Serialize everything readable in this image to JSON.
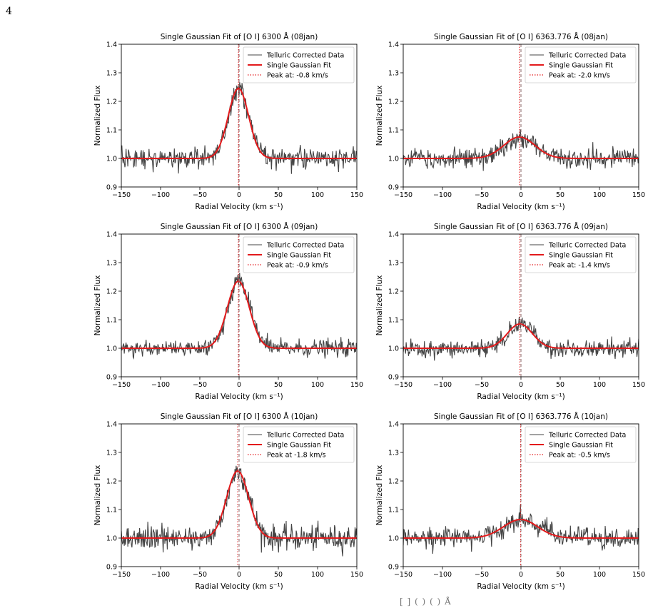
{
  "page": {
    "page_number": "4"
  },
  "axis_common": {
    "xlabel": "Radial Velocity (km s⁻¹)",
    "ylabel": "Normalized Flux",
    "x_ticks": [
      "−150",
      "−100",
      "−50",
      "0",
      "50",
      "100",
      "150"
    ],
    "y_ticks": [
      "0.9",
      "1.0",
      "1.1",
      "1.2",
      "1.3",
      "1.4"
    ],
    "xlim": [
      -150,
      150
    ],
    "ylim": [
      0.9,
      1.4
    ],
    "legend_position": "top-right"
  },
  "colors": {
    "data_line": "#444444",
    "fit_line": "#e31a1c",
    "peak_line": "#e31a1c",
    "zero_line": "#8b6a6a"
  },
  "chart_data": [
    {
      "type": "line",
      "title": "Single Gaussian Fit of [O I] 6300 Å (08jan)",
      "xlabel": "Radial Velocity (km s⁻¹)",
      "ylabel": "Normalized Flux",
      "xlim": [
        -150,
        150
      ],
      "ylim": [
        0.9,
        1.4
      ],
      "series": [
        {
          "name": "Telluric Corrected Data",
          "kind": "noisy-line",
          "baseline": 1.0,
          "amplitude": 0.24,
          "center": 0,
          "sigma": 13,
          "noise": 0.018
        },
        {
          "name": "Single Gaussian Fit",
          "kind": "gaussian",
          "baseline": 1.0,
          "amplitude": 0.245,
          "center": -0.8,
          "sigma": 13
        }
      ],
      "peak": {
        "label": "Peak at: -0.8 km/s",
        "x": -0.8
      }
    },
    {
      "type": "line",
      "title": "Single Gaussian Fit of [O I] 6363.776 Å (08jan)",
      "xlabel": "Radial Velocity (km s⁻¹)",
      "ylabel": "Normalized Flux",
      "xlim": [
        -150,
        150
      ],
      "ylim": [
        0.9,
        1.4
      ],
      "series": [
        {
          "name": "Telluric Corrected Data",
          "kind": "noisy-line",
          "baseline": 1.0,
          "amplitude": 0.075,
          "center": 0,
          "sigma": 20,
          "noise": 0.018
        },
        {
          "name": "Single Gaussian Fit",
          "kind": "gaussian",
          "baseline": 1.0,
          "amplitude": 0.075,
          "center": -2.0,
          "sigma": 20
        }
      ],
      "peak": {
        "label": "Peak at: -2.0 km/s",
        "x": -2.0
      }
    },
    {
      "type": "line",
      "title": "Single Gaussian Fit of [O I] 6300 Å (09jan)",
      "xlabel": "Radial Velocity (km s⁻¹)",
      "ylabel": "Normalized Flux",
      "xlim": [
        -150,
        150
      ],
      "ylim": [
        0.9,
        1.4
      ],
      "series": [
        {
          "name": "Telluric Corrected Data",
          "kind": "noisy-line",
          "baseline": 1.0,
          "amplitude": 0.235,
          "center": 0,
          "sigma": 14,
          "noise": 0.015
        },
        {
          "name": "Single Gaussian Fit",
          "kind": "gaussian",
          "baseline": 1.0,
          "amplitude": 0.235,
          "center": -0.9,
          "sigma": 14
        }
      ],
      "peak": {
        "label": "Peak at: -0.9 km/s",
        "x": -0.9
      }
    },
    {
      "type": "line",
      "title": "Single Gaussian Fit of [O I] 6363.776 Å (09jan)",
      "xlabel": "Radial Velocity (km s⁻¹)",
      "ylabel": "Normalized Flux",
      "xlim": [
        -150,
        150
      ],
      "ylim": [
        0.9,
        1.4
      ],
      "series": [
        {
          "name": "Telluric Corrected Data",
          "kind": "noisy-line",
          "baseline": 1.0,
          "amplitude": 0.085,
          "center": 0,
          "sigma": 16,
          "noise": 0.015
        },
        {
          "name": "Single Gaussian Fit",
          "kind": "gaussian",
          "baseline": 1.0,
          "amplitude": 0.085,
          "center": -1.4,
          "sigma": 16
        }
      ],
      "peak": {
        "label": "Peak at: -1.4 km/s",
        "x": -1.4
      }
    },
    {
      "type": "line",
      "title": "Single Gaussian Fit of [O I] 6300 Å (10jan)",
      "xlabel": "Radial Velocity (km s⁻¹)",
      "ylabel": "Normalized Flux",
      "xlim": [
        -150,
        150
      ],
      "ylim": [
        0.9,
        1.4
      ],
      "series": [
        {
          "name": "Telluric Corrected Data",
          "kind": "noisy-line",
          "baseline": 1.0,
          "amplitude": 0.235,
          "center": -1,
          "sigma": 14,
          "noise": 0.022
        },
        {
          "name": "Single Gaussian Fit",
          "kind": "gaussian",
          "baseline": 1.0,
          "amplitude": 0.235,
          "center": -1.8,
          "sigma": 14
        }
      ],
      "peak": {
        "label": "Peak at -1.8 km/s",
        "x": -1.8
      }
    },
    {
      "type": "line",
      "title": "Single Gaussian Fit of [O I] 6363.776 Å (10jan)",
      "xlabel": "Radial Velocity (km s⁻¹)",
      "ylabel": "Normalized Flux",
      "xlim": [
        -150,
        150
      ],
      "ylim": [
        0.9,
        1.4
      ],
      "series": [
        {
          "name": "Telluric Corrected Data",
          "kind": "noisy-line",
          "baseline": 1.0,
          "amplitude": 0.065,
          "center": 0,
          "sigma": 22,
          "noise": 0.018
        },
        {
          "name": "Single Gaussian Fit",
          "kind": "gaussian",
          "baseline": 1.0,
          "amplitude": 0.065,
          "center": -0.5,
          "sigma": 22
        }
      ],
      "peak": {
        "label": "Peak at: -0.5 km/s",
        "x": -0.5
      }
    }
  ],
  "caption": {
    "fragment": "[  ]     (  )   (  )  Å"
  }
}
